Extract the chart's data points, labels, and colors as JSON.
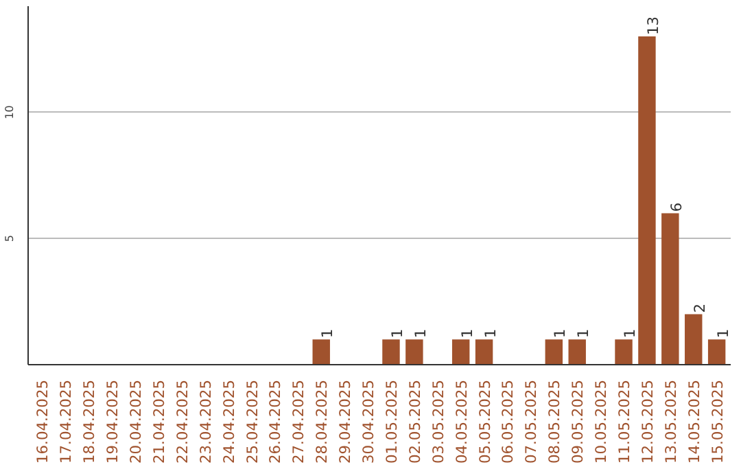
{
  "chart_data": {
    "type": "bar",
    "categories": [
      "16.04.2025",
      "17.04.2025",
      "18.04.2025",
      "19.04.2025",
      "20.04.2025",
      "21.04.2025",
      "22.04.2025",
      "23.04.2025",
      "24.04.2025",
      "25.04.2025",
      "26.04.2025",
      "27.04.2025",
      "28.04.2025",
      "29.04.2025",
      "30.04.2025",
      "01.05.2025",
      "02.05.2025",
      "03.05.2025",
      "04.05.2025",
      "05.05.2025",
      "06.05.2025",
      "07.05.2025",
      "08.05.2025",
      "09.05.2025",
      "10.05.2025",
      "11.05.2025",
      "12.05.2025",
      "13.05.2025",
      "14.05.2025",
      "15.05.2025"
    ],
    "values": [
      0,
      0,
      0,
      0,
      0,
      0,
      0,
      0,
      0,
      0,
      0,
      0,
      1,
      0,
      0,
      1,
      1,
      0,
      1,
      1,
      0,
      0,
      1,
      1,
      0,
      1,
      13,
      6,
      2,
      1
    ],
    "value_labels": [
      null,
      null,
      null,
      null,
      null,
      null,
      null,
      null,
      null,
      null,
      null,
      null,
      "1",
      null,
      null,
      "1",
      "1",
      null,
      "1",
      "1",
      null,
      null,
      "1",
      "1",
      null,
      "1",
      "13",
      "6",
      "2",
      "1"
    ],
    "color": "#a0522d",
    "ylim": [
      0,
      14.2
    ],
    "yticks": [
      5,
      10
    ],
    "grid": "y"
  }
}
